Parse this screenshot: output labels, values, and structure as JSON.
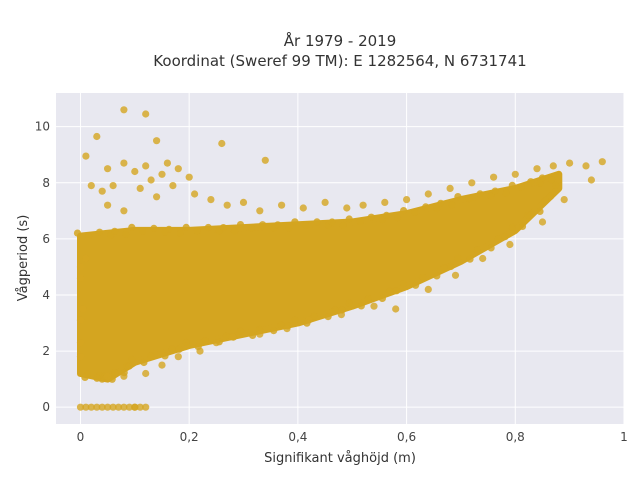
{
  "chart_data": {
    "type": "scatter",
    "title_lines": [
      "År 1979 - 2019",
      "Koordinat (Sweref 99 TM): E 1282564, N 6731741"
    ],
    "xlabel": "Signifikant våghöjd (m)",
    "ylabel": "Vågperiod (s)",
    "xlim": [
      -0.045,
      1.0
    ],
    "ylim": [
      -0.6,
      11.2
    ],
    "x_ticks": [
      0,
      0.2,
      0.4,
      0.6,
      0.8,
      1.0
    ],
    "x_tick_labels": [
      "0",
      "0,2",
      "0,4",
      "0,6",
      "0,8",
      "1"
    ],
    "y_ticks": [
      0,
      2,
      4,
      6,
      8,
      10
    ],
    "y_tick_labels": [
      "0",
      "2",
      "4",
      "6",
      "8",
      "10"
    ],
    "grid": true,
    "legend": "none",
    "colors": {
      "marker": "#d4a520",
      "plot_background": "#e8e8f0",
      "grid": "#ffffff"
    },
    "dense_band": {
      "upper_edge": [
        [
          0.0,
          6.1
        ],
        [
          0.1,
          6.3
        ],
        [
          0.2,
          6.3
        ],
        [
          0.3,
          6.4
        ],
        [
          0.4,
          6.5
        ],
        [
          0.5,
          6.6
        ],
        [
          0.6,
          6.9
        ],
        [
          0.7,
          7.4
        ],
        [
          0.8,
          7.8
        ],
        [
          0.88,
          8.3
        ]
      ],
      "lower_edge": [
        [
          0.88,
          7.8
        ],
        [
          0.8,
          6.3
        ],
        [
          0.7,
          5.2
        ],
        [
          0.6,
          4.3
        ],
        [
          0.5,
          3.6
        ],
        [
          0.4,
          3.0
        ],
        [
          0.3,
          2.6
        ],
        [
          0.2,
          2.2
        ],
        [
          0.1,
          1.6
        ],
        [
          0.05,
          1.0
        ],
        [
          0.0,
          1.2
        ]
      ]
    },
    "points": [
      [
        0.0,
        0
      ],
      [
        0.01,
        0
      ],
      [
        0.02,
        0
      ],
      [
        0.03,
        0
      ],
      [
        0.04,
        0
      ],
      [
        0.05,
        0
      ],
      [
        0.06,
        0
      ],
      [
        0.07,
        0
      ],
      [
        0.08,
        0
      ],
      [
        0.09,
        0
      ],
      [
        0.1,
        0
      ],
      [
        0.11,
        0
      ],
      [
        0.12,
        0
      ],
      [
        0.1,
        0
      ],
      [
        0.0,
        3.1
      ],
      [
        0.0,
        2.3
      ],
      [
        0.0,
        1.8
      ],
      [
        0.0,
        5.0
      ],
      [
        0.005,
        3.5
      ],
      [
        0.08,
        10.6
      ],
      [
        0.12,
        10.45
      ],
      [
        0.14,
        9.5
      ],
      [
        0.03,
        9.65
      ],
      [
        0.26,
        9.4
      ],
      [
        0.01,
        8.95
      ],
      [
        0.34,
        8.8
      ],
      [
        0.05,
        8.5
      ],
      [
        0.08,
        8.7
      ],
      [
        0.1,
        8.4
      ],
      [
        0.12,
        8.6
      ],
      [
        0.15,
        8.3
      ],
      [
        0.18,
        8.5
      ],
      [
        0.2,
        8.2
      ],
      [
        0.13,
        8.1
      ],
      [
        0.16,
        8.7
      ],
      [
        0.02,
        7.9
      ],
      [
        0.04,
        7.7
      ],
      [
        0.06,
        7.9
      ],
      [
        0.11,
        7.8
      ],
      [
        0.14,
        7.5
      ],
      [
        0.17,
        7.9
      ],
      [
        0.21,
        7.6
      ],
      [
        0.24,
        7.4
      ],
      [
        0.27,
        7.2
      ],
      [
        0.3,
        7.3
      ],
      [
        0.33,
        7.0
      ],
      [
        0.37,
        7.2
      ],
      [
        0.41,
        7.1
      ],
      [
        0.45,
        7.3
      ],
      [
        0.49,
        7.1
      ],
      [
        0.52,
        7.2
      ],
      [
        0.56,
        7.3
      ],
      [
        0.6,
        7.4
      ],
      [
        0.64,
        7.6
      ],
      [
        0.68,
        7.8
      ],
      [
        0.72,
        8.0
      ],
      [
        0.76,
        8.2
      ],
      [
        0.8,
        8.3
      ],
      [
        0.84,
        8.5
      ],
      [
        0.87,
        8.6
      ],
      [
        0.9,
        8.7
      ],
      [
        0.93,
        8.6
      ],
      [
        0.96,
        8.75
      ],
      [
        0.94,
        8.1
      ],
      [
        0.05,
        7.2
      ],
      [
        0.08,
        7.0
      ],
      [
        0.01,
        5.3
      ],
      [
        0.0,
        4.6
      ],
      [
        0.05,
        1.1
      ],
      [
        0.08,
        1.1
      ],
      [
        0.12,
        1.2
      ],
      [
        0.15,
        1.5
      ],
      [
        0.18,
        1.8
      ],
      [
        0.22,
        2.0
      ],
      [
        0.25,
        2.3
      ],
      [
        0.28,
        2.5
      ],
      [
        0.33,
        2.6
      ],
      [
        0.38,
        2.8
      ],
      [
        0.42,
        3.1
      ],
      [
        0.48,
        3.3
      ],
      [
        0.54,
        3.6
      ],
      [
        0.58,
        3.5
      ],
      [
        0.64,
        4.2
      ],
      [
        0.69,
        4.7
      ],
      [
        0.74,
        5.3
      ],
      [
        0.79,
        5.8
      ],
      [
        0.85,
        6.6
      ],
      [
        0.89,
        7.4
      ]
    ]
  }
}
